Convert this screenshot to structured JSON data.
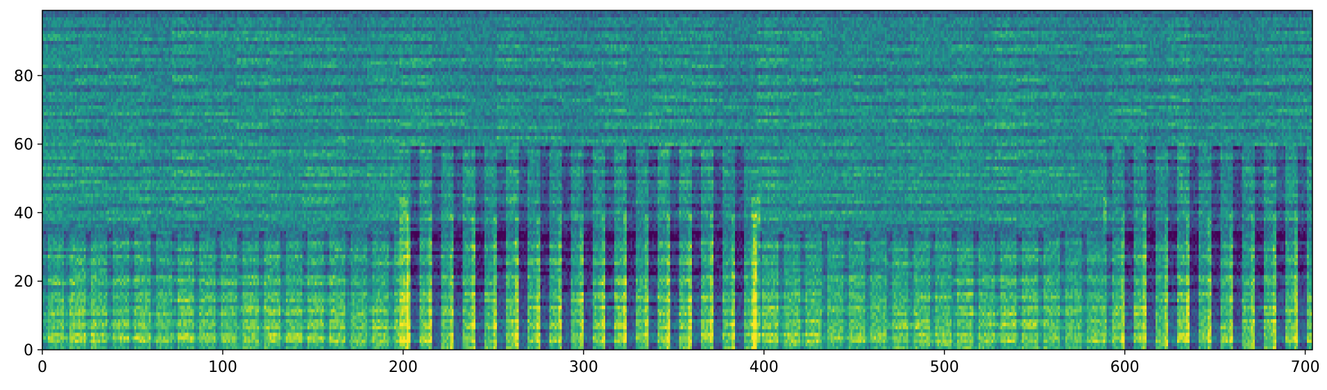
{
  "chart_data": {
    "type": "heatmap",
    "title": "",
    "xlabel": "",
    "ylabel": "",
    "xlim": [
      0,
      704
    ],
    "ylim": [
      0,
      99
    ],
    "x_ticks": [
      0,
      100,
      200,
      300,
      400,
      500,
      600,
      700
    ],
    "y_ticks": [
      0,
      20,
      40,
      60,
      80
    ],
    "x_tick_labels": [
      "0",
      "100",
      "200",
      "300",
      "400",
      "500",
      "600",
      "700"
    ],
    "y_tick_labels": [
      "0",
      "20",
      "40",
      "60",
      "80"
    ],
    "n_time_frames": 704,
    "n_frequency_bins": 100,
    "colormap": "viridis",
    "colormap_stops": [
      "#440154",
      "#482475",
      "#414487",
      "#355f8d",
      "#2a788e",
      "#21918c",
      "#22a884",
      "#44bf70",
      "#7ad151",
      "#bddf26",
      "#fde725"
    ],
    "value_range": [
      0,
      1
    ],
    "grid": false,
    "legend": "none",
    "description_values": {
      "repeating_section_boundaries": [
        0,
        200,
        395,
        590,
        704
      ],
      "low_frequency_energy_band": [
        0,
        30
      ],
      "dense_vertical_structure_frames": [
        200,
        395,
        590,
        704
      ]
    }
  }
}
